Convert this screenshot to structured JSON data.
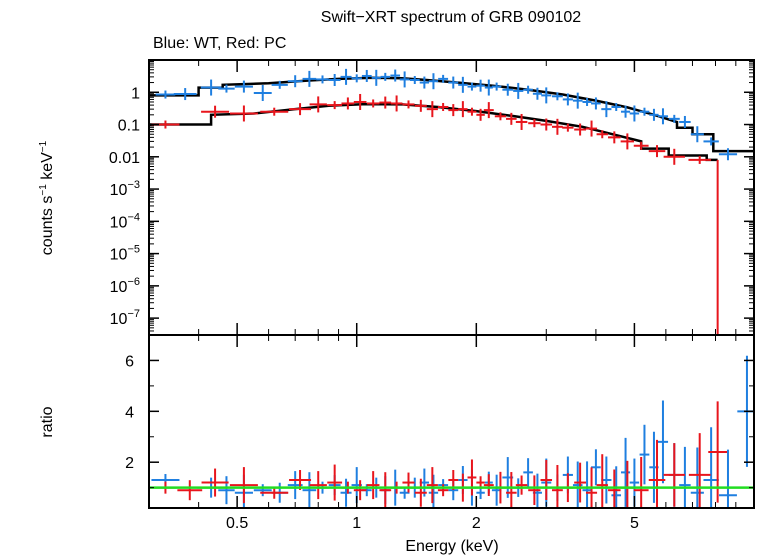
{
  "chart_data": {
    "type": "scatter",
    "title": "Swift−XRT spectrum of GRB 090102",
    "subtitle": "Blue: WT, Red: PC",
    "xlabel": "Energy (keV)",
    "x_scale": "log",
    "xlim": [
      0.3,
      10
    ],
    "x_ticks": [
      0.5,
      1,
      2,
      5
    ],
    "x_tick_labels": [
      "0.5",
      "1",
      "2",
      "5"
    ],
    "colors": {
      "WT": "#1f7fe0",
      "PC": "#e8151c",
      "model": "#000000",
      "unity": "#22dd22"
    },
    "panels": [
      {
        "name": "spectrum",
        "ylabel": "counts s⁻¹ keV⁻¹",
        "y_scale": "log",
        "ylim": [
          3e-08,
          10
        ],
        "y_ticks": [
          1,
          0.1,
          0.01,
          0.001,
          0.0001,
          1e-05,
          1e-06,
          1e-07
        ],
        "y_tick_labels": [
          {
            "base": "1",
            "exp": ""
          },
          {
            "base": "0.1",
            "exp": ""
          },
          {
            "base": "0.01",
            "exp": ""
          },
          {
            "base": "10",
            "exp": "−3"
          },
          {
            "base": "10",
            "exp": "−4"
          },
          {
            "base": "10",
            "exp": "−5"
          },
          {
            "base": "10",
            "exp": "−6"
          },
          {
            "base": "10",
            "exp": "−7"
          }
        ],
        "series": [
          {
            "color": "WT",
            "points": [
              [
                0.33,
                0.85
              ],
              [
                0.37,
                0.88
              ],
              [
                0.43,
                1.4
              ],
              [
                0.47,
                1.3
              ],
              [
                0.52,
                1.5
              ],
              [
                0.58,
                0.95
              ],
              [
                0.64,
                1.7
              ],
              [
                0.7,
                2.2
              ],
              [
                0.76,
                2.6
              ],
              [
                0.82,
                2.5
              ],
              [
                0.88,
                2.4
              ],
              [
                0.94,
                3.0
              ],
              [
                1.0,
                2.7
              ],
              [
                1.06,
                3.2
              ],
              [
                1.12,
                2.8
              ],
              [
                1.18,
                3.0
              ],
              [
                1.25,
                3.3
              ],
              [
                1.32,
                2.5
              ],
              [
                1.4,
                2.4
              ],
              [
                1.48,
                2.0
              ],
              [
                1.56,
                2.2
              ],
              [
                1.65,
                2.6
              ],
              [
                1.75,
                2.0
              ],
              [
                1.85,
                1.7
              ],
              [
                1.95,
                1.5
              ],
              [
                2.05,
                1.6
              ],
              [
                2.15,
                1.4
              ],
              [
                2.25,
                1.5
              ],
              [
                2.4,
                1.2
              ],
              [
                2.55,
                1.1
              ],
              [
                2.7,
                1.2
              ],
              [
                2.85,
                0.9
              ],
              [
                3.0,
                0.8
              ],
              [
                3.2,
                0.75
              ],
              [
                3.4,
                0.6
              ],
              [
                3.6,
                0.55
              ],
              [
                3.8,
                0.5
              ],
              [
                4.0,
                0.45
              ],
              [
                4.25,
                0.3
              ],
              [
                4.5,
                0.35
              ],
              [
                4.75,
                0.25
              ],
              [
                5.0,
                0.22
              ],
              [
                5.3,
                0.25
              ],
              [
                5.6,
                0.2
              ],
              [
                5.9,
                0.18
              ],
              [
                6.3,
                0.15
              ],
              [
                6.7,
                0.12
              ],
              [
                7.2,
                0.05
              ],
              [
                7.8,
                0.03
              ],
              [
                8.6,
                0.012
              ]
            ]
          },
          {
            "color": "PC",
            "points": [
              [
                0.33,
                0.1
              ],
              [
                0.44,
                0.25
              ],
              [
                0.52,
                0.22
              ],
              [
                0.62,
                0.25
              ],
              [
                0.72,
                0.3
              ],
              [
                0.8,
                0.42
              ],
              [
                0.88,
                0.4
              ],
              [
                0.95,
                0.45
              ],
              [
                1.02,
                0.5
              ],
              [
                1.1,
                0.45
              ],
              [
                1.18,
                0.48
              ],
              [
                1.26,
                0.45
              ],
              [
                1.35,
                0.42
              ],
              [
                1.45,
                0.38
              ],
              [
                1.55,
                0.3
              ],
              [
                1.65,
                0.35
              ],
              [
                1.75,
                0.28
              ],
              [
                1.85,
                0.3
              ],
              [
                1.95,
                0.25
              ],
              [
                2.05,
                0.2
              ],
              [
                2.15,
                0.28
              ],
              [
                2.3,
                0.18
              ],
              [
                2.45,
                0.15
              ],
              [
                2.6,
                0.12
              ],
              [
                2.8,
                0.11
              ],
              [
                3.0,
                0.1
              ],
              [
                3.2,
                0.085
              ],
              [
                3.4,
                0.08
              ],
              [
                3.65,
                0.07
              ],
              [
                3.9,
                0.075
              ],
              [
                4.15,
                0.05
              ],
              [
                4.45,
                0.04
              ],
              [
                4.8,
                0.03
              ],
              [
                5.2,
                0.022
              ],
              [
                5.7,
                0.015
              ],
              [
                6.3,
                0.01
              ],
              [
                7.3,
                0.008
              ]
            ]
          }
        ],
        "models": [
          {
            "color": "model",
            "steps": [
              [
                0.3,
                0.8
              ],
              [
                0.4,
                0.8
              ],
              [
                0.4,
                1.4
              ],
              [
                0.46,
                1.4
              ],
              [
                0.46,
                1.7
              ],
              [
                0.6,
                1.9
              ],
              [
                0.75,
                2.3
              ],
              [
                0.9,
                2.6
              ],
              [
                1.1,
                2.8
              ],
              [
                1.3,
                2.7
              ],
              [
                1.5,
                2.4
              ],
              [
                1.8,
                2.0
              ],
              [
                2.2,
                1.6
              ],
              [
                2.7,
                1.2
              ],
              [
                3.3,
                0.85
              ],
              [
                4.0,
                0.55
              ],
              [
                4.8,
                0.34
              ],
              [
                5.6,
                0.2
              ],
              [
                6.4,
                0.12
              ],
              [
                6.4,
                0.08
              ],
              [
                7.0,
                0.08
              ],
              [
                7.0,
                0.05
              ],
              [
                7.9,
                0.05
              ],
              [
                7.9,
                0.015
              ],
              [
                10.0,
                0.015
              ]
            ]
          },
          {
            "color": "model",
            "steps": [
              [
                0.3,
                0.1
              ],
              [
                0.43,
                0.1
              ],
              [
                0.43,
                0.2
              ],
              [
                0.55,
                0.22
              ],
              [
                0.7,
                0.3
              ],
              [
                0.85,
                0.38
              ],
              [
                1.05,
                0.43
              ],
              [
                1.3,
                0.42
              ],
              [
                1.6,
                0.35
              ],
              [
                2.0,
                0.26
              ],
              [
                2.5,
                0.18
              ],
              [
                3.0,
                0.13
              ],
              [
                3.7,
                0.085
              ],
              [
                4.4,
                0.05
              ],
              [
                5.2,
                0.03
              ],
              [
                5.2,
                0.018
              ],
              [
                6.1,
                0.018
              ],
              [
                6.1,
                0.011
              ],
              [
                7.6,
                0.011
              ],
              [
                7.6,
                0.008
              ],
              [
                8.1,
                0.008
              ]
            ]
          }
        ]
      },
      {
        "name": "ratio",
        "ylabel": "ratio",
        "y_scale": "linear",
        "ylim": [
          0.2,
          7
        ],
        "y_ticks": [
          2,
          4,
          6
        ],
        "y_tick_labels": [
          "2",
          "4",
          "6"
        ],
        "unity_line": 1,
        "series": [
          {
            "color": "WT",
            "points": [
              [
                0.33,
                1.3
              ],
              [
                0.43,
                1.0
              ],
              [
                0.47,
                0.9
              ],
              [
                0.52,
                0.8
              ],
              [
                0.58,
                0.9
              ],
              [
                0.64,
                0.8
              ],
              [
                0.7,
                1.1
              ],
              [
                0.76,
                0.9
              ],
              [
                0.82,
                1.0
              ],
              [
                0.88,
                1.1
              ],
              [
                0.94,
                0.8
              ],
              [
                1.0,
                1.1
              ],
              [
                1.06,
                0.9
              ],
              [
                1.12,
                1.0
              ],
              [
                1.18,
                0.9
              ],
              [
                1.25,
                1.0
              ],
              [
                1.32,
                0.8
              ],
              [
                1.4,
                1.0
              ],
              [
                1.48,
                1.2
              ],
              [
                1.56,
                0.8
              ],
              [
                1.65,
                1.1
              ],
              [
                1.75,
                0.9
              ],
              [
                1.85,
                1.3
              ],
              [
                1.95,
                1.0
              ],
              [
                2.05,
                0.8
              ],
              [
                2.15,
                1.2
              ],
              [
                2.25,
                0.9
              ],
              [
                2.4,
                1.4
              ],
              [
                2.55,
                1.0
              ],
              [
                2.7,
                1.6
              ],
              [
                2.85,
                0.8
              ],
              [
                3.0,
                1.2
              ],
              [
                3.2,
                1.0
              ],
              [
                3.4,
                1.5
              ],
              [
                3.6,
                1.1
              ],
              [
                3.8,
                0.9
              ],
              [
                4.0,
                1.8
              ],
              [
                4.25,
                1.3
              ],
              [
                4.5,
                0.7
              ],
              [
                4.75,
                1.6
              ],
              [
                5.0,
                1.2
              ],
              [
                5.3,
                2.3
              ],
              [
                5.6,
                1.8
              ],
              [
                5.9,
                2.8
              ],
              [
                6.3,
                1.5
              ],
              [
                6.7,
                1.1
              ],
              [
                7.2,
                0.8
              ],
              [
                7.8,
                1.3
              ],
              [
                8.6,
                0.7
              ],
              [
                9.6,
                4.0
              ]
            ]
          },
          {
            "color": "PC",
            "points": [
              [
                0.33,
                1.0
              ],
              [
                0.38,
                0.9
              ],
              [
                0.44,
                1.2
              ],
              [
                0.52,
                1.1
              ],
              [
                0.62,
                0.8
              ],
              [
                0.72,
                1.3
              ],
              [
                0.8,
                1.1
              ],
              [
                0.88,
                1.2
              ],
              [
                0.95,
                1.0
              ],
              [
                1.02,
                0.9
              ],
              [
                1.1,
                1.1
              ],
              [
                1.18,
                0.9
              ],
              [
                1.26,
                1.0
              ],
              [
                1.35,
                1.2
              ],
              [
                1.45,
                0.8
              ],
              [
                1.55,
                1.1
              ],
              [
                1.65,
                0.9
              ],
              [
                1.75,
                1.3
              ],
              [
                1.85,
                1.0
              ],
              [
                1.95,
                1.4
              ],
              [
                2.05,
                1.2
              ],
              [
                2.15,
                1.1
              ],
              [
                2.3,
                1.0
              ],
              [
                2.45,
                0.8
              ],
              [
                2.6,
                1.1
              ],
              [
                2.8,
                0.9
              ],
              [
                3.0,
                1.3
              ],
              [
                3.2,
                0.9
              ],
              [
                3.4,
                1.0
              ],
              [
                3.65,
                1.2
              ],
              [
                3.9,
                0.8
              ],
              [
                4.15,
                1.1
              ],
              [
                4.45,
                0.9
              ],
              [
                4.8,
                1.0
              ],
              [
                5.2,
                0.9
              ],
              [
                5.7,
                1.3
              ],
              [
                6.3,
                1.5
              ],
              [
                7.3,
                1.5
              ],
              [
                8.1,
                2.4
              ]
            ]
          }
        ]
      }
    ]
  }
}
